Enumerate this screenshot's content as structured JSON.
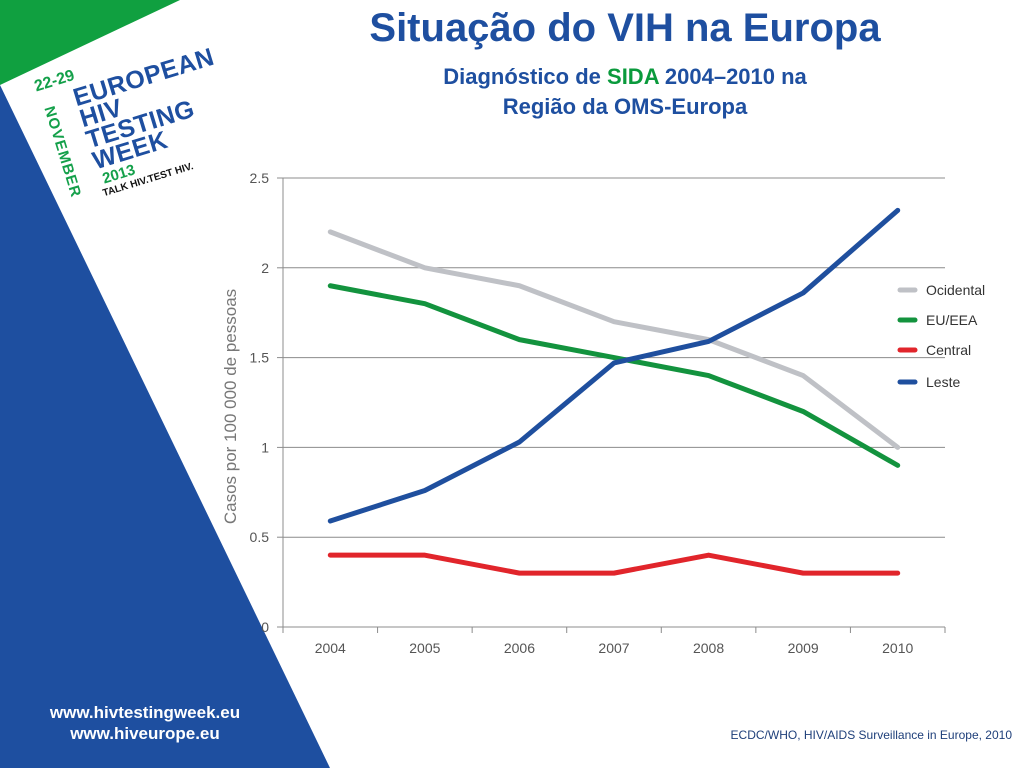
{
  "slide": {
    "title": "Situação do VIH na Europa",
    "subtitle_line1_a": "Diagnóstico de",
    "subtitle_line1_highlight": "SIDA",
    "subtitle_line1_b": "2004–2010 na",
    "subtitle_line2": "Região da OMS-Europa",
    "source": "ECDC/WHO, HIV/AIDS Surveillance in Europe, 2010",
    "url1": "www.hivtestingweek.eu",
    "url2": "www.hiveurope.eu"
  },
  "logo": {
    "dates": "22-29",
    "line1": "EUROPEAN",
    "line2": "HIV",
    "line3": "TESTING",
    "line4": "WEEK",
    "month": "NOVEMBER",
    "year": "2013",
    "tagline": "TALK HIV.TEST HIV."
  },
  "colors": {
    "blue": "#1e4fa0",
    "green": "#0a9a3c",
    "accent_green_corner": "#10a040"
  },
  "chart_data": {
    "type": "line",
    "title": "",
    "xlabel": "",
    "ylabel": "Casos por 100 000 de pessoas",
    "x": [
      "2004",
      "2005",
      "2006",
      "2007",
      "2008",
      "2009",
      "2010"
    ],
    "ylim": [
      0,
      2.5
    ],
    "yticks": [
      "0",
      "0.5",
      "1",
      "1.5",
      "2",
      "2.5"
    ],
    "grid": true,
    "legend_position": "right",
    "series": [
      {
        "name": "Ocidental",
        "color": "#bfc1c6",
        "values": [
          2.2,
          2.0,
          1.9,
          1.7,
          1.6,
          1.4,
          1.0
        ]
      },
      {
        "name": "EU/EEA",
        "color": "#13933e",
        "values": [
          1.9,
          1.8,
          1.6,
          1.5,
          1.4,
          1.2,
          0.9
        ]
      },
      {
        "name": "Central",
        "color": "#e1252b",
        "values": [
          0.4,
          0.4,
          0.3,
          0.3,
          0.4,
          0.3,
          0.3
        ]
      },
      {
        "name": "Leste",
        "color": "#1f4f9e",
        "values": [
          0.59,
          0.76,
          1.03,
          1.47,
          1.59,
          1.86,
          2.32
        ]
      }
    ]
  }
}
